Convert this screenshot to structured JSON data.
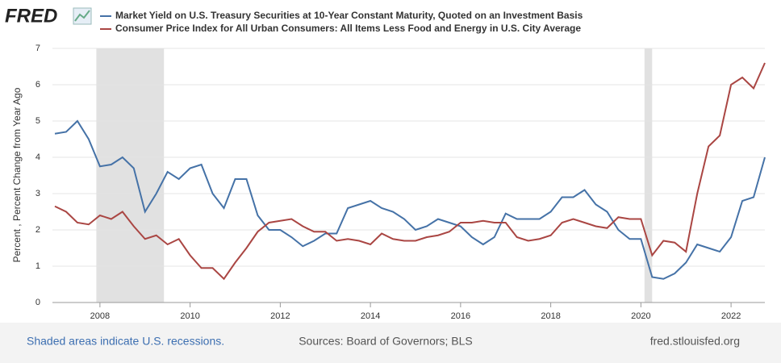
{
  "logo": "FRED",
  "chart_data": {
    "type": "line",
    "y_label": "Percent , Percent Change from Year Ago",
    "x": [
      2007.0,
      2007.25,
      2007.5,
      2007.75,
      2008.0,
      2008.25,
      2008.5,
      2008.75,
      2009.0,
      2009.25,
      2009.5,
      2009.75,
      2010.0,
      2010.25,
      2010.5,
      2010.75,
      2011.0,
      2011.25,
      2011.5,
      2011.75,
      2012.0,
      2012.25,
      2012.5,
      2012.75,
      2013.0,
      2013.25,
      2013.5,
      2013.75,
      2014.0,
      2014.25,
      2014.5,
      2014.75,
      2015.0,
      2015.25,
      2015.5,
      2015.75,
      2016.0,
      2016.25,
      2016.5,
      2016.75,
      2017.0,
      2017.25,
      2017.5,
      2017.75,
      2018.0,
      2018.25,
      2018.5,
      2018.75,
      2019.0,
      2019.25,
      2019.5,
      2019.75,
      2020.0,
      2020.25,
      2020.5,
      2020.75,
      2021.0,
      2021.25,
      2021.5,
      2021.75,
      2022.0,
      2022.25,
      2022.5,
      2022.75
    ],
    "series": [
      {
        "name": "Market Yield on U.S. Treasury Securities at 10-Year Constant Maturity, Quoted on an Investment Basis",
        "color": "#4572a7",
        "values": [
          4.65,
          4.7,
          5.0,
          4.5,
          3.75,
          3.8,
          4.0,
          3.7,
          2.5,
          3.0,
          3.6,
          3.4,
          3.7,
          3.8,
          3.0,
          2.6,
          3.4,
          3.4,
          2.4,
          2.0,
          2.0,
          1.8,
          1.55,
          1.7,
          1.9,
          1.9,
          2.6,
          2.7,
          2.8,
          2.6,
          2.5,
          2.3,
          2.0,
          2.1,
          2.3,
          2.2,
          2.1,
          1.8,
          1.6,
          1.8,
          2.45,
          2.3,
          2.3,
          2.3,
          2.5,
          2.9,
          2.9,
          3.1,
          2.7,
          2.5,
          2.0,
          1.75,
          1.75,
          0.7,
          0.65,
          0.8,
          1.1,
          1.6,
          1.5,
          1.4,
          1.8,
          2.8,
          2.9,
          4.0
        ]
      },
      {
        "name": "Consumer Price Index for All Urban Consumers: All Items Less Food and Energy in U.S. City Average",
        "color": "#aa4643",
        "values": [
          2.65,
          2.5,
          2.2,
          2.15,
          2.4,
          2.3,
          2.5,
          2.1,
          1.75,
          1.85,
          1.6,
          1.75,
          1.3,
          0.95,
          0.95,
          0.65,
          1.1,
          1.5,
          1.95,
          2.2,
          2.25,
          2.3,
          2.1,
          1.95,
          1.95,
          1.7,
          1.75,
          1.7,
          1.6,
          1.9,
          1.75,
          1.7,
          1.7,
          1.8,
          1.85,
          1.95,
          2.2,
          2.2,
          2.25,
          2.2,
          2.2,
          1.8,
          1.7,
          1.75,
          1.85,
          2.2,
          2.3,
          2.2,
          2.1,
          2.05,
          2.35,
          2.3,
          2.3,
          1.3,
          1.7,
          1.65,
          1.4,
          3.0,
          4.3,
          4.6,
          6.0,
          6.2,
          5.9,
          6.6
        ]
      }
    ],
    "recessions": [
      [
        2007.92,
        2009.42
      ],
      [
        2020.08,
        2020.25
      ]
    ],
    "xlim": [
      2007,
      2022.75
    ],
    "xticks": [
      2008,
      2010,
      2012,
      2014,
      2016,
      2018,
      2020,
      2022
    ],
    "ylim": [
      0,
      7
    ],
    "yticks": [
      0,
      1,
      2,
      3,
      4,
      5,
      6,
      7
    ],
    "grid": true,
    "footer": {
      "left": "Shaded areas indicate U.S. recessions.",
      "center": "Sources: Board of Governors; BLS",
      "right": "fred.stlouisfed.org"
    }
  }
}
